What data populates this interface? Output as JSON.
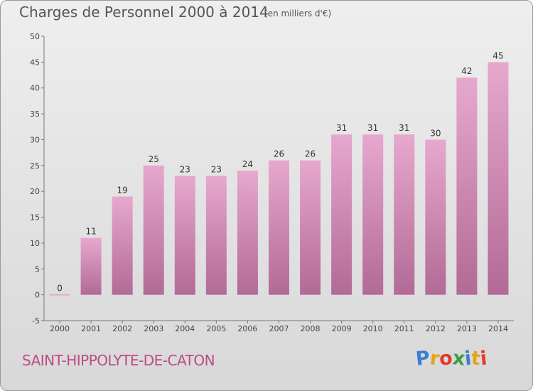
{
  "header": {
    "title": "Charges de Personnel 2000 à 2014",
    "subtitle": "(en milliers d'€)"
  },
  "footer": {
    "commune": "SAINT-HIPPOLYTE-DE-CATON",
    "logo_letters": [
      "P",
      "r",
      "o",
      "x",
      "i",
      "t",
      "i"
    ],
    "logo_colors": [
      "#3a7fd0",
      "#e8a21c",
      "#e23a2c",
      "#3aa043",
      "#3a7fd0",
      "#e8a21c",
      "#e23a2c"
    ]
  },
  "chart_data": {
    "type": "bar",
    "categories": [
      "2000",
      "2001",
      "2002",
      "2003",
      "2004",
      "2005",
      "2006",
      "2007",
      "2008",
      "2009",
      "2010",
      "2011",
      "2012",
      "2013",
      "2014"
    ],
    "values": [
      0,
      11,
      19,
      25,
      23,
      23,
      24,
      26,
      26,
      31,
      31,
      31,
      30,
      42,
      45
    ],
    "value_labels": [
      "0",
      "11",
      "19",
      "25",
      "23",
      "23",
      "24",
      "26",
      "26",
      "31",
      "31",
      "31",
      "30",
      "42",
      "45"
    ],
    "y_ticks": [
      -5,
      0,
      5,
      10,
      15,
      20,
      25,
      30,
      35,
      40,
      45,
      50
    ],
    "y_tick_labels": [
      "-5",
      "0",
      "5",
      "10",
      "15",
      "20",
      "25",
      "30",
      "35",
      "40",
      "45",
      "50"
    ],
    "ylim": [
      -5,
      50
    ],
    "grid": false,
    "bar_color_top": "#e7a8ce",
    "bar_color_bottom": "#b26a96"
  }
}
